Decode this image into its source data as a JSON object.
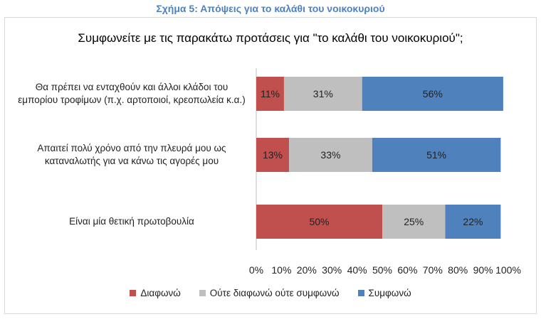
{
  "caption": "Σχήμα 5: Απόψεις για το καλάθι του νοικοκυριού",
  "chart_data": {
    "type": "bar",
    "orientation": "horizontal",
    "stacked": "100%",
    "title": "Συμφωνείτε με τις παρακάτω προτάσεις για \"το καλάθι του νοικοκυριού\";",
    "categories": [
      "Θα πρέπει να ενταχθούν και άλλοι κλάδοι του εμπορίου τροφίμων (π.χ. αρτοποιοί, κρεοπωλεία κ.α.)",
      "Απαιτεί πολύ χρόνο από την πλευρά μου ως καταναλωτής για να κάνω τις αγορές μου",
      "Είναι μία θετική πρωτοβουλία"
    ],
    "series": [
      {
        "name": "Διαφωνώ",
        "color": "#c0504d",
        "values": [
          11,
          13,
          50
        ],
        "labels": [
          "11%",
          "13%",
          "50%"
        ]
      },
      {
        "name": "Ούτε διαφωνώ ούτε συμφωνώ",
        "color": "#bfbfbf",
        "values": [
          31,
          33,
          25
        ],
        "labels": [
          "31%",
          "33%",
          "25%"
        ]
      },
      {
        "name": "Συμφωνώ",
        "color": "#4f81bd",
        "values": [
          56,
          51,
          22
        ],
        "labels": [
          "56%",
          "51%",
          "22%"
        ]
      }
    ],
    "xlim": [
      0,
      100
    ],
    "xticks": [
      "0%",
      "10%",
      "20%",
      "30%",
      "40%",
      "50%",
      "60%",
      "70%",
      "80%",
      "90%",
      "100%"
    ],
    "legend_position": "bottom",
    "grid": false
  }
}
